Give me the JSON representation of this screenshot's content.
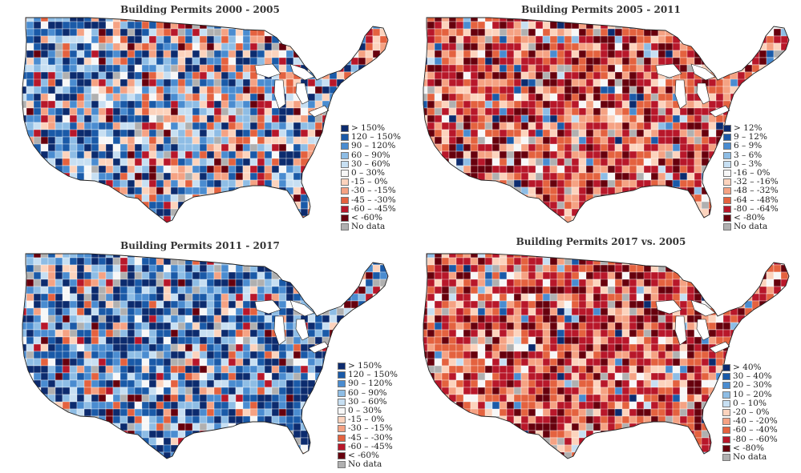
{
  "colors": {
    "land": "#f0ebe6",
    "county_stroke": "#ffffff",
    "outline": "#222222",
    "no_data": "#b0b0b0",
    "diverging": [
      "#0c2b6e",
      "#1a5aa8",
      "#4a8cd0",
      "#8ebde5",
      "#c7dff2",
      "#f7f7f7",
      "#fcd3bd",
      "#f5a283",
      "#e4623f",
      "#b8172a",
      "#67000d"
    ]
  },
  "chart_data": [
    {
      "type": "choropleth",
      "region": "contiguous United States (counties)",
      "title": "Building Permits 2000 - 2005",
      "scheme": "mixed",
      "legend": {
        "labels": [
          "> 150%",
          "120 – 150%",
          "90 – 120%",
          "60 – 90%",
          "30 – 60%",
          "0 – 30%",
          "-15 – 0%",
          "-30 – -15%",
          "-45 – -30%",
          "-60 – -45%",
          "< -60%",
          "No data"
        ],
        "colors": [
          "#0c2b6e",
          "#1a5aa8",
          "#4a8cd0",
          "#8ebde5",
          "#c7dff2",
          "#f7f7f7",
          "#fcd3bd",
          "#f5a283",
          "#e4623f",
          "#b8172a",
          "#67000d",
          "#b0b0b0"
        ]
      }
    },
    {
      "type": "choropleth",
      "region": "contiguous United States (counties)",
      "title": "Building Permits 2005 - 2011",
      "scheme": "red",
      "legend": {
        "labels": [
          "> 12%",
          "9 – 12%",
          "6 – 9%",
          "3 – 6%",
          "0 – 3%",
          "-16 – 0%",
          "-32 – -16%",
          "-48 – -32%",
          "-64 – -48%",
          "-80 – -64%",
          "< -80%",
          "No data"
        ],
        "colors": [
          "#0c2b6e",
          "#1a5aa8",
          "#4a8cd0",
          "#8ebde5",
          "#c7dff2",
          "#f7f7f7",
          "#fcd3bd",
          "#f5a283",
          "#e4623f",
          "#b8172a",
          "#67000d",
          "#b0b0b0"
        ]
      }
    },
    {
      "type": "choropleth",
      "region": "contiguous United States (counties)",
      "title": "Building Permits 2011 - 2017",
      "scheme": "blue",
      "legend": {
        "labels": [
          "> 150%",
          "120 – 150%",
          "90 – 120%",
          "60 – 90%",
          "30 – 60%",
          "0 – 30%",
          "-15 – 0%",
          "-30 – -15%",
          "-45 – -30%",
          "-60 – -45%",
          "< -60%",
          "No data"
        ],
        "colors": [
          "#0c2b6e",
          "#1a5aa8",
          "#4a8cd0",
          "#8ebde5",
          "#c7dff2",
          "#f7f7f7",
          "#fcd3bd",
          "#f5a283",
          "#e4623f",
          "#b8172a",
          "#67000d",
          "#b0b0b0"
        ]
      }
    },
    {
      "type": "choropleth",
      "region": "contiguous United States (counties)",
      "title": "Building Permits 2017 vs. 2005",
      "scheme": "red",
      "legend": {
        "labels": [
          "> 40%",
          "30 – 40%",
          "20 – 30%",
          "10 – 20%",
          "0 – 10%",
          "-20 – 0%",
          "-40 – -20%",
          "-60 – -40%",
          "-80 – -60%",
          "< -80%",
          "No data"
        ],
        "colors": [
          "#0c2b6e",
          "#1a5aa8",
          "#4a8cd0",
          "#8ebde5",
          "#c7dff2",
          "#fcd3bd",
          "#f5a283",
          "#e4623f",
          "#b8172a",
          "#67000d",
          "#b0b0b0"
        ]
      }
    }
  ]
}
